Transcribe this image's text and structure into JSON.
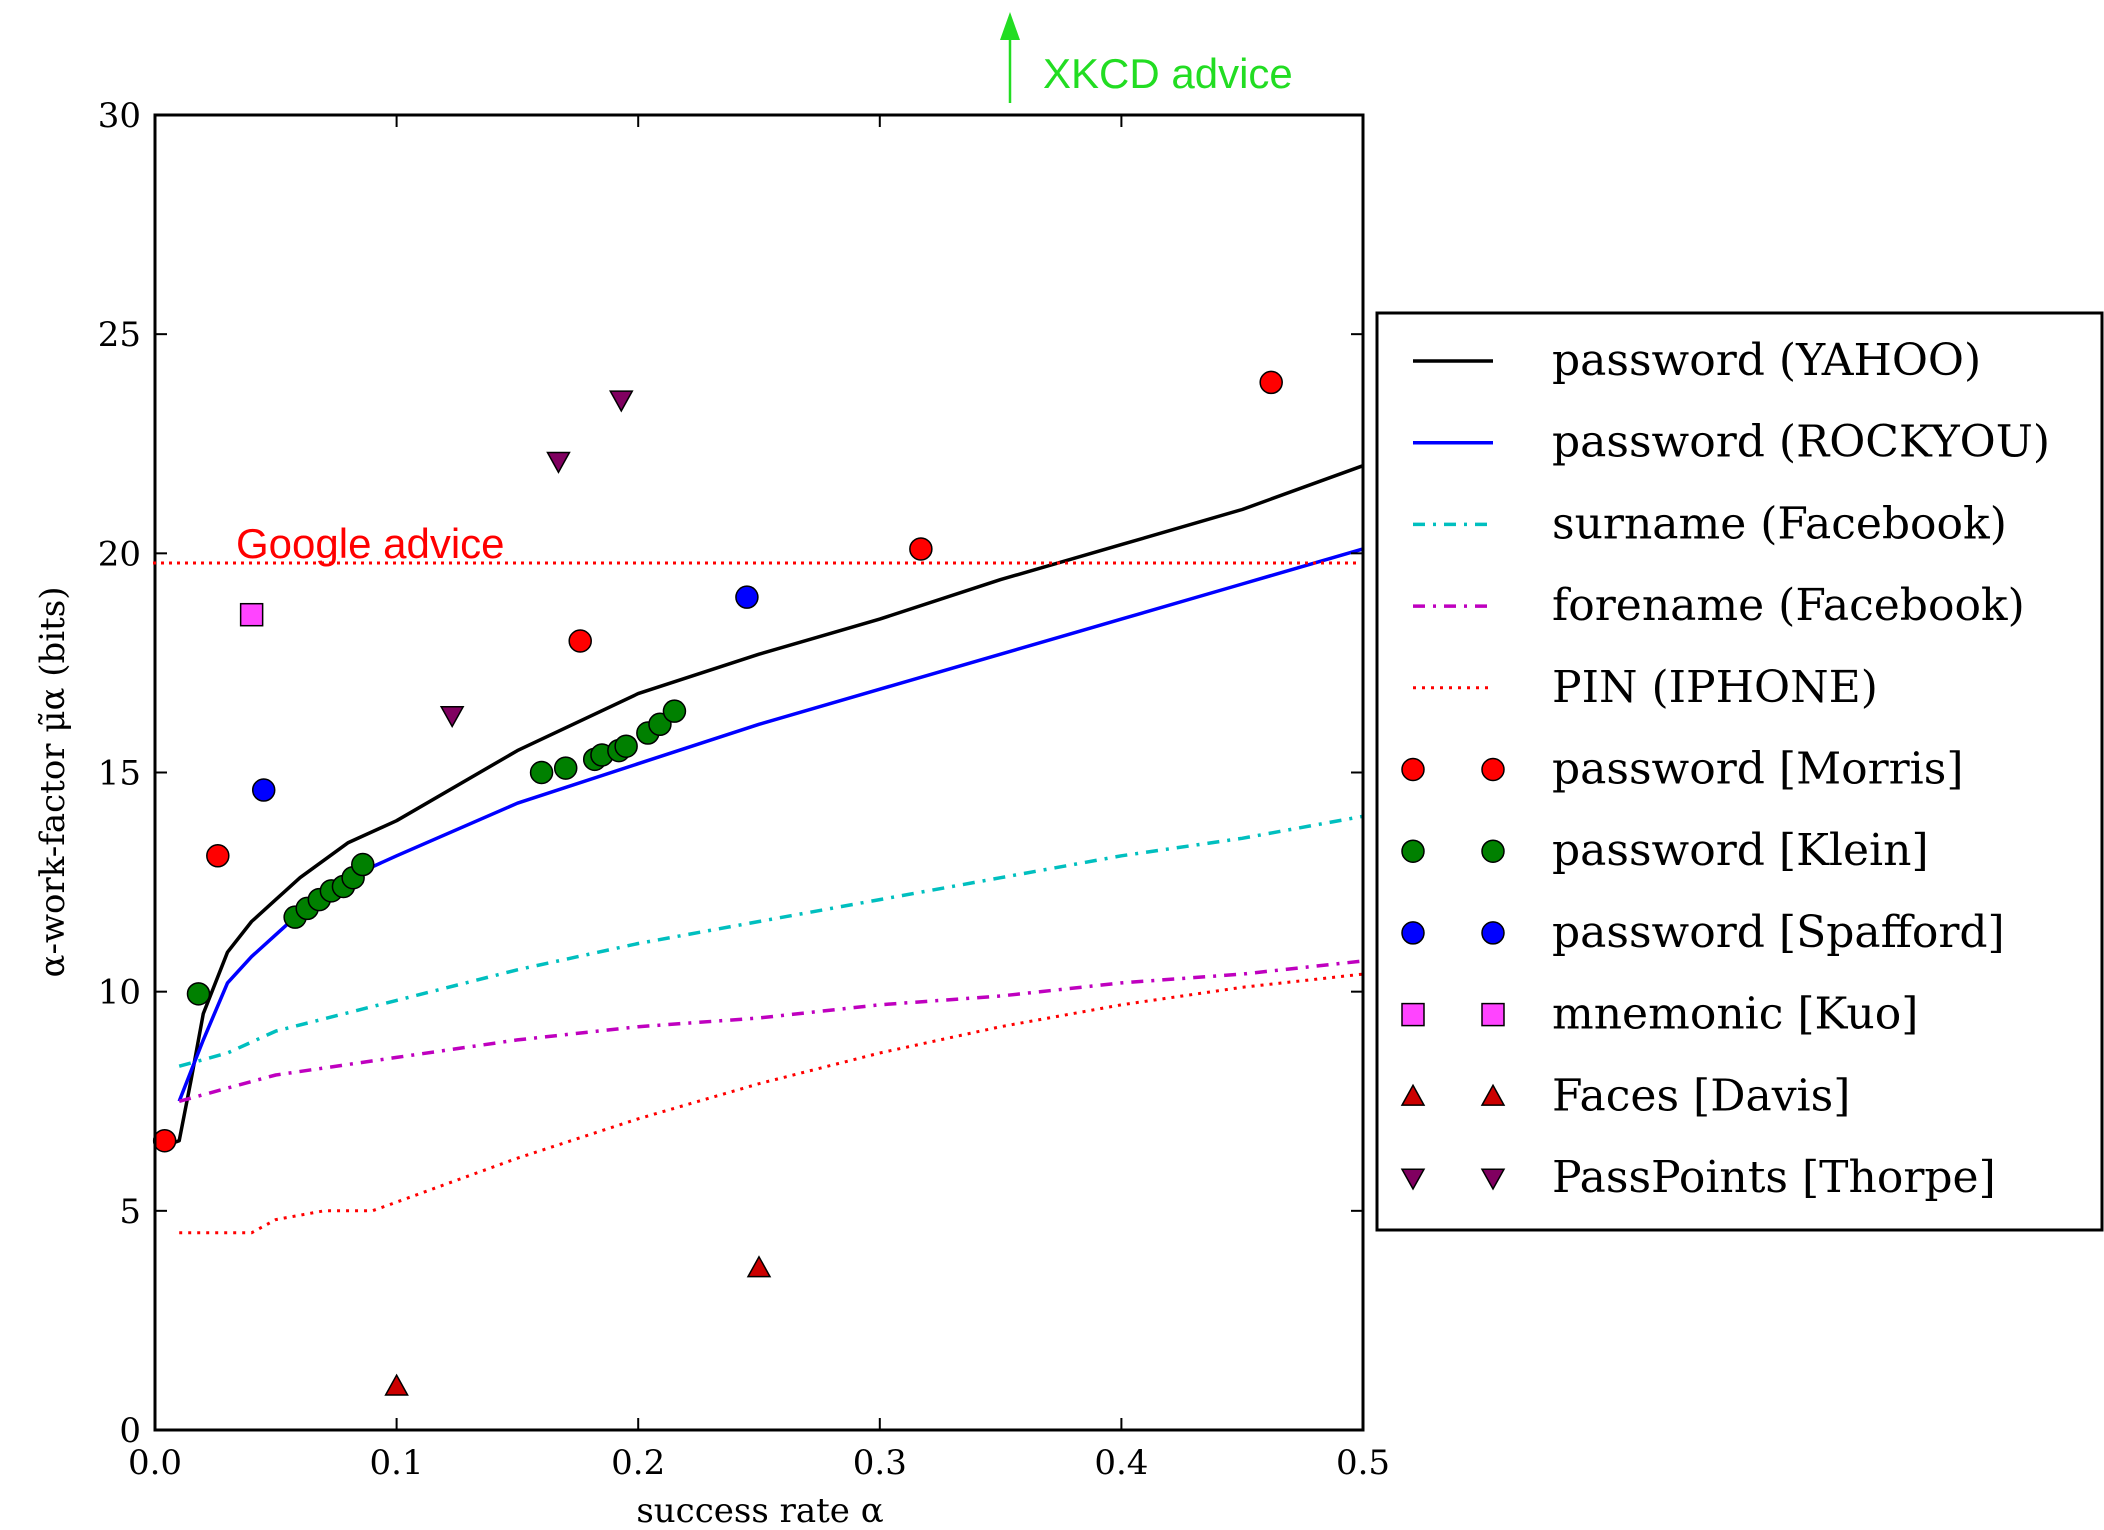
{
  "chart_data": {
    "type": "line",
    "xlabel": "success rate α",
    "ylabel": "α-work-factor  μ̃α (bits)",
    "xlim": [
      0.0,
      0.5
    ],
    "ylim": [
      0,
      30
    ],
    "x_ticks": [
      "0.0",
      "0.1",
      "0.2",
      "0.3",
      "0.4",
      "0.5"
    ],
    "y_ticks": [
      "0",
      "5",
      "10",
      "15",
      "20",
      "25",
      "30"
    ],
    "grid": false,
    "legend_position": "right, outside plot",
    "annotations": [
      {
        "text": "Google advice",
        "y": 19.8,
        "color": "#ff0000"
      },
      {
        "text": "XKCD advice",
        "x": 0.355,
        "color": "#22dd22"
      }
    ],
    "series": [
      {
        "name": "password (YAHOO)",
        "kind": "line",
        "color": "#000000",
        "style": "solid",
        "x": [
          0.005,
          0.01,
          0.015,
          0.02,
          0.03,
          0.04,
          0.05,
          0.06,
          0.08,
          0.1,
          0.15,
          0.2,
          0.25,
          0.3,
          0.35,
          0.4,
          0.45,
          0.5
        ],
        "y": [
          6.5,
          6.6,
          8.0,
          9.5,
          10.9,
          11.6,
          12.1,
          12.6,
          13.4,
          13.9,
          15.5,
          16.8,
          17.7,
          18.5,
          19.4,
          20.2,
          21.0,
          22.0
        ]
      },
      {
        "name": "password (ROCKYOU)",
        "kind": "line",
        "color": "#0000ff",
        "style": "solid",
        "x": [
          0.01,
          0.015,
          0.02,
          0.03,
          0.04,
          0.05,
          0.06,
          0.08,
          0.1,
          0.15,
          0.2,
          0.25,
          0.3,
          0.35,
          0.4,
          0.45,
          0.5
        ],
        "y": [
          7.5,
          8.2,
          8.9,
          10.2,
          10.8,
          11.3,
          11.8,
          12.6,
          13.1,
          14.3,
          15.2,
          16.1,
          16.9,
          17.7,
          18.5,
          19.3,
          20.1
        ]
      },
      {
        "name": "surname (Facebook)",
        "kind": "line",
        "color": "#00bfbf",
        "style": "dashdot",
        "x": [
          0.01,
          0.03,
          0.05,
          0.1,
          0.15,
          0.2,
          0.25,
          0.3,
          0.35,
          0.4,
          0.45,
          0.5
        ],
        "y": [
          8.3,
          8.6,
          9.1,
          9.8,
          10.5,
          11.1,
          11.6,
          12.1,
          12.6,
          13.1,
          13.5,
          14.0
        ]
      },
      {
        "name": "forename (Facebook)",
        "kind": "line",
        "color": "#bf00bf",
        "style": "dashdot",
        "x": [
          0.01,
          0.03,
          0.05,
          0.1,
          0.15,
          0.2,
          0.25,
          0.3,
          0.35,
          0.4,
          0.45,
          0.5
        ],
        "y": [
          7.5,
          7.8,
          8.1,
          8.5,
          8.9,
          9.2,
          9.4,
          9.7,
          9.9,
          10.2,
          10.4,
          10.7
        ]
      },
      {
        "name": "PIN (IPHONE)",
        "kind": "line",
        "color": "#ff0000",
        "style": "dotted",
        "x": [
          0.01,
          0.04,
          0.05,
          0.07,
          0.09,
          0.1,
          0.12,
          0.15,
          0.2,
          0.25,
          0.3,
          0.35,
          0.4,
          0.45,
          0.5
        ],
        "y": [
          4.5,
          4.5,
          4.8,
          5.0,
          5.0,
          5.2,
          5.6,
          6.2,
          7.1,
          7.9,
          8.6,
          9.2,
          9.7,
          10.1,
          10.4
        ]
      },
      {
        "name": "password [Morris]",
        "kind": "scatter",
        "marker": "circle",
        "color": "#ff0000",
        "x": [
          0.004,
          0.026,
          0.176,
          0.317,
          0.462
        ],
        "y": [
          6.6,
          13.1,
          18.0,
          20.1,
          23.9
        ]
      },
      {
        "name": "password [Klein]",
        "kind": "scatter",
        "marker": "circle",
        "color": "#008000",
        "x": [
          0.018,
          0.058,
          0.063,
          0.068,
          0.073,
          0.078,
          0.082,
          0.086,
          0.16,
          0.17,
          0.182,
          0.185,
          0.192,
          0.195,
          0.204,
          0.209,
          0.215
        ],
        "y": [
          9.95,
          11.7,
          11.9,
          12.1,
          12.3,
          12.4,
          12.6,
          12.9,
          15.0,
          15.1,
          15.3,
          15.4,
          15.5,
          15.6,
          15.9,
          16.1,
          16.4
        ]
      },
      {
        "name": "password [Spafford]",
        "kind": "scatter",
        "marker": "circle",
        "color": "#0000ff",
        "x": [
          0.045,
          0.245
        ],
        "y": [
          14.6,
          19.0
        ]
      },
      {
        "name": "mnemonic [Kuo]",
        "kind": "scatter",
        "marker": "square",
        "color": "#ff44ff",
        "x": [
          0.04
        ],
        "y": [
          18.6
        ]
      },
      {
        "name": "Faces [Davis]",
        "kind": "scatter",
        "marker": "triangle-up",
        "color": "#cc0000",
        "x": [
          0.1,
          0.25
        ],
        "y": [
          1.0,
          3.7
        ]
      },
      {
        "name": "PassPoints [Thorpe]",
        "kind": "scatter",
        "marker": "triangle-down",
        "color": "#800060",
        "x": [
          0.123,
          0.167,
          0.193
        ],
        "y": [
          16.3,
          22.1,
          23.5
        ]
      }
    ]
  }
}
